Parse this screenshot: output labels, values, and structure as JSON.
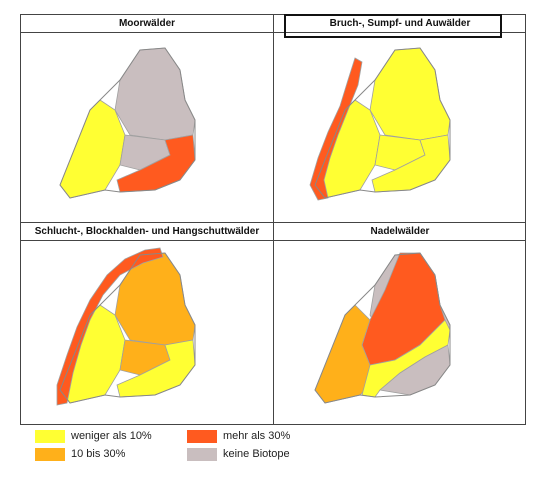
{
  "panels": [
    {
      "title": "Moorwälder",
      "fills": {
        "west": "#ffff33",
        "mid": "#c9bebf",
        "east": "#ff5a1f",
        "north": "#c9bebf"
      }
    },
    {
      "title": "Bruch-, Sumpf- und Auwälder",
      "fills": {
        "west": "#ffff33",
        "mid": "#ffff33",
        "east": "#ffff33",
        "north": "#ffff33",
        "rhine": "#ff5a1f"
      }
    },
    {
      "title": "Schlucht-, Blockhalden- und Hangschuttwälder",
      "fills": {
        "west": "#ffff33",
        "mid": "#ffb01a",
        "east": "#ffff33",
        "north": "#ffb01a",
        "rhine": "#ff5a1f"
      }
    },
    {
      "title": "Nadelwälder",
      "fills": {
        "west": "#ffb01a",
        "mid": "#ff5a1f",
        "east": "#ffff33",
        "north": "#c9bebf",
        "south": "#c9bebf"
      }
    }
  ],
  "legend": [
    {
      "label": "weniger als 10%",
      "color": "#ffff33"
    },
    {
      "label": "mehr als 30%",
      "color": "#ff5a1f"
    },
    {
      "label": "10 bis 30%",
      "color": "#ffb01a"
    },
    {
      "label": "keine Biotope",
      "color": "#c9bebf"
    }
  ]
}
